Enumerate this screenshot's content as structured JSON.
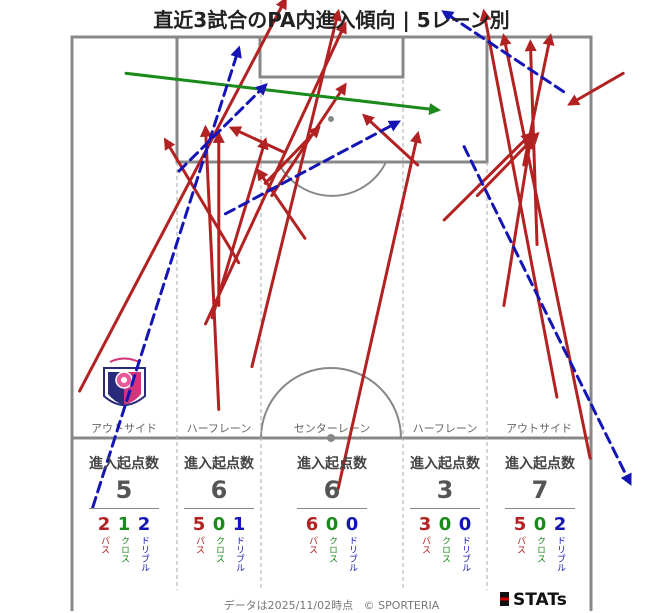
{
  "title": "直近3試合のPA内進入傾向 | 5レーン別",
  "footer": {
    "date": "データは2025/11/02時点",
    "credit": "© SPORTERIA",
    "logo": "STATs"
  },
  "colors": {
    "pass": "#b22222",
    "cross": "#1a8a1a",
    "dribble": "#1515b5",
    "pitch_line": "#888888",
    "lane_line": "#aaaaaa"
  },
  "badge_icon": "club-crest-icon",
  "chart_data": {
    "type": "arrow-map",
    "lanes": [
      {
        "name": "アウトサイド",
        "stat_header": "進入起点数",
        "total": "5",
        "breakdown": [
          {
            "value": "2",
            "label": "パス",
            "kind": "pass"
          },
          {
            "value": "1",
            "label": "クロス",
            "kind": "cross"
          },
          {
            "value": "2",
            "label": "ドリブル",
            "kind": "dribble"
          }
        ]
      },
      {
        "name": "ハーフレーン",
        "stat_header": "進入起点数",
        "total": "6",
        "breakdown": [
          {
            "value": "5",
            "label": "パス",
            "kind": "pass"
          },
          {
            "value": "0",
            "label": "クロス",
            "kind": "cross"
          },
          {
            "value": "1",
            "label": "ドリブル",
            "kind": "dribble"
          }
        ]
      },
      {
        "name": "センターレーン",
        "stat_header": "進入起点数",
        "total": "6",
        "breakdown": [
          {
            "value": "6",
            "label": "パス",
            "kind": "pass"
          },
          {
            "value": "0",
            "label": "クロス",
            "kind": "cross"
          },
          {
            "value": "0",
            "label": "ドリブル",
            "kind": "dribble"
          }
        ]
      },
      {
        "name": "ハーフレーン",
        "stat_header": "進入起点数",
        "total": "3",
        "breakdown": [
          {
            "value": "3",
            "label": "パス",
            "kind": "pass"
          },
          {
            "value": "0",
            "label": "クロス",
            "kind": "cross"
          },
          {
            "value": "0",
            "label": "ドリブル",
            "kind": "dribble"
          }
        ]
      },
      {
        "name": "アウトサイド",
        "stat_header": "進入起点数",
        "total": "7",
        "breakdown": [
          {
            "value": "5",
            "label": "パス",
            "kind": "pass"
          },
          {
            "value": "0",
            "label": "クロス",
            "kind": "cross"
          },
          {
            "value": "2",
            "label": "ドリブル",
            "kind": "dribble"
          }
        ]
      }
    ],
    "arrows": [
      {
        "kind": "pass",
        "from": [
          12,
          36
        ],
        "to": [
          43,
          100
        ]
      },
      {
        "kind": "pass",
        "from": [
          31,
          47
        ],
        "to": [
          52,
          96
        ]
      },
      {
        "kind": "pass",
        "from": [
          38,
          40
        ],
        "to": [
          51,
          98
        ]
      },
      {
        "kind": "pass",
        "from": [
          33,
          33
        ],
        "to": [
          31,
          79
        ]
      },
      {
        "kind": "pass",
        "from": [
          32,
          48
        ],
        "to": [
          40,
          77
        ]
      },
      {
        "kind": "pass",
        "from": [
          33,
          50
        ],
        "to": [
          33,
          78
        ]
      },
      {
        "kind": "pass",
        "from": [
          36,
          57
        ],
        "to": [
          25,
          77
        ]
      },
      {
        "kind": "pass",
        "from": [
          43,
          75
        ],
        "to": [
          35,
          79
        ]
      },
      {
        "kind": "pass",
        "from": [
          46,
          61
        ],
        "to": [
          39,
          72
        ]
      },
      {
        "kind": "pass",
        "from": [
          41,
          68
        ],
        "to": [
          52,
          86
        ]
      },
      {
        "kind": "pass",
        "from": [
          40,
          70
        ],
        "to": [
          48,
          79
        ]
      },
      {
        "kind": "pass",
        "from": [
          63,
          73
        ],
        "to": [
          55,
          81
        ]
      },
      {
        "kind": "pass",
        "from": [
          51,
          20
        ],
        "to": [
          63,
          78
        ]
      },
      {
        "kind": "pass",
        "from": [
          67,
          64
        ],
        "to": [
          80,
          78
        ]
      },
      {
        "kind": "pass",
        "from": [
          72,
          68
        ],
        "to": [
          81,
          78
        ]
      },
      {
        "kind": "pass",
        "from": [
          76,
          50
        ],
        "to": [
          80,
          77
        ]
      },
      {
        "kind": "pass",
        "from": [
          94,
          88
        ],
        "to": [
          86,
          83
        ]
      },
      {
        "kind": "pass",
        "from": [
          79,
          73
        ],
        "to": [
          83,
          94
        ]
      },
      {
        "kind": "pass",
        "from": [
          84,
          35
        ],
        "to": [
          73,
          98
        ]
      },
      {
        "kind": "pass",
        "from": [
          89,
          25
        ],
        "to": [
          76,
          94
        ]
      },
      {
        "kind": "pass",
        "from": [
          81,
          60
        ],
        "to": [
          80,
          93
        ]
      },
      {
        "kind": "cross",
        "from": [
          19,
          88
        ],
        "to": [
          66,
          82
        ]
      },
      {
        "kind": "dribble",
        "from": [
          14,
          17
        ],
        "to": [
          36,
          92
        ]
      },
      {
        "kind": "dribble",
        "from": [
          27,
          72
        ],
        "to": [
          40,
          86
        ]
      },
      {
        "kind": "dribble",
        "from": [
          34,
          65
        ],
        "to": [
          60,
          80
        ]
      },
      {
        "kind": "dribble",
        "from": [
          70,
          76
        ],
        "to": [
          95,
          21
        ]
      },
      {
        "kind": "dribble",
        "from": [
          85,
          85
        ],
        "to": [
          67,
          98
        ]
      }
    ]
  }
}
